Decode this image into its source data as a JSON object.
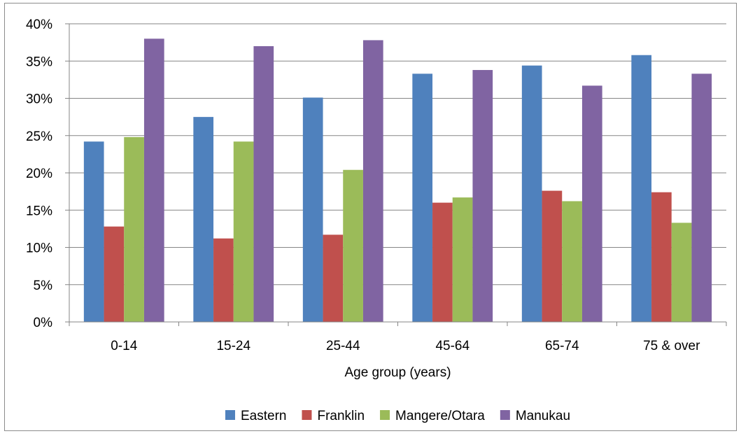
{
  "chart_data": {
    "type": "bar",
    "xlabel": "Age group (years)",
    "ylabel": "",
    "categories": [
      "0-14",
      "15-24",
      "25-44",
      "45-64",
      "65-74",
      "75 & over"
    ],
    "ylim": [
      0,
      40
    ],
    "y_ticks": [
      0,
      5,
      10,
      15,
      20,
      25,
      30,
      35,
      40
    ],
    "y_tick_labels": [
      "0%",
      "5%",
      "10%",
      "15%",
      "20%",
      "25%",
      "30%",
      "35%",
      "40%"
    ],
    "grid": true,
    "legend_position": "bottom",
    "series": [
      {
        "name": "Eastern",
        "color": "#4f81bd",
        "values": [
          24.2,
          27.5,
          30.1,
          33.3,
          34.4,
          35.8
        ]
      },
      {
        "name": "Franklin",
        "color": "#c0504d",
        "values": [
          12.8,
          11.2,
          11.7,
          16.0,
          17.6,
          17.4
        ]
      },
      {
        "name": "Mangere/Otara",
        "color": "#9bbb59",
        "values": [
          24.8,
          24.2,
          20.4,
          16.7,
          16.2,
          13.3
        ]
      },
      {
        "name": "Manukau",
        "color": "#8064a2",
        "values": [
          38.0,
          37.0,
          37.8,
          33.8,
          31.7,
          33.3
        ]
      }
    ]
  }
}
